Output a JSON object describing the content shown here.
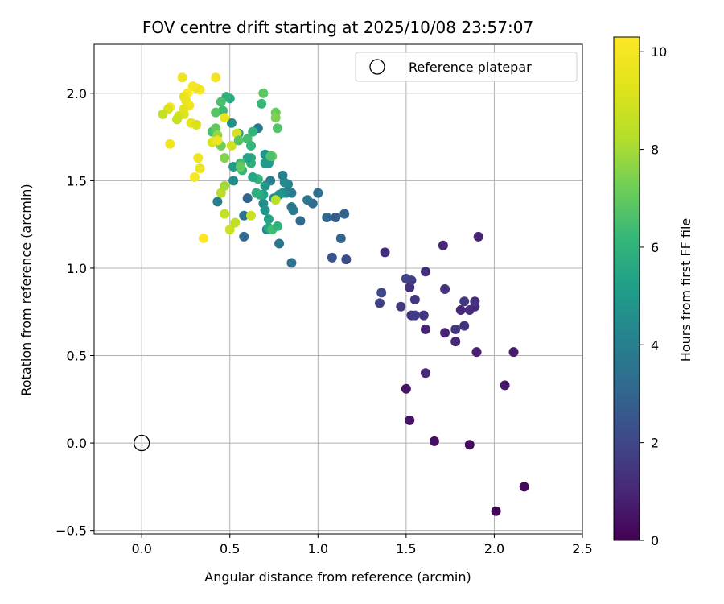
{
  "chart_data": {
    "type": "scatter",
    "title": "FOV centre drift starting at 2025/10/08 23:57:07",
    "xlabel": "Angular distance from reference (arcmin)",
    "ylabel": "Rotation from reference (arcmin)",
    "xlim": [
      -0.27,
      2.5
    ],
    "ylim": [
      -0.52,
      2.28
    ],
    "xticks": [
      0.0,
      0.5,
      1.0,
      1.5,
      2.0,
      2.5
    ],
    "xtick_labels": [
      "0.0",
      "0.5",
      "1.0",
      "1.5",
      "2.0",
      "2.5"
    ],
    "yticks": [
      -0.5,
      0.0,
      0.5,
      1.0,
      1.5,
      2.0
    ],
    "ytick_labels": [
      "−0.5",
      "0.0",
      "0.5",
      "1.0",
      "1.5",
      "2.0"
    ],
    "grid": true,
    "legend": {
      "position": "top-right",
      "entries": [
        "Reference platepar"
      ]
    },
    "reference": {
      "x": 0.0,
      "y": 0.0,
      "label": "Reference platepar"
    },
    "colorbar": {
      "label": "Hours from first FF file",
      "range": [
        0,
        10.3
      ],
      "ticks": [
        0,
        2,
        4,
        6,
        8,
        10
      ],
      "tick_labels": [
        "0",
        "2",
        "4",
        "6",
        "8",
        "10"
      ],
      "colormap": "viridis"
    },
    "points": [
      {
        "x": 2.01,
        "y": -0.39,
        "h": 0.1
      },
      {
        "x": 2.17,
        "y": -0.25,
        "h": 0.2
      },
      {
        "x": 1.86,
        "y": -0.01,
        "h": 0.3
      },
      {
        "x": 1.66,
        "y": 0.01,
        "h": 0.4
      },
      {
        "x": 1.52,
        "y": 0.13,
        "h": 0.5
      },
      {
        "x": 1.5,
        "y": 0.31,
        "h": 0.5
      },
      {
        "x": 2.06,
        "y": 0.33,
        "h": 0.6
      },
      {
        "x": 2.11,
        "y": 0.52,
        "h": 0.7
      },
      {
        "x": 1.9,
        "y": 0.52,
        "h": 0.8
      },
      {
        "x": 1.61,
        "y": 0.4,
        "h": 1.0
      },
      {
        "x": 1.61,
        "y": 0.65,
        "h": 0.9
      },
      {
        "x": 1.72,
        "y": 0.63,
        "h": 0.9
      },
      {
        "x": 1.78,
        "y": 0.58,
        "h": 1.0
      },
      {
        "x": 1.78,
        "y": 0.65,
        "h": 1.5
      },
      {
        "x": 1.83,
        "y": 0.67,
        "h": 1.4
      },
      {
        "x": 1.81,
        "y": 0.76,
        "h": 1.0
      },
      {
        "x": 1.86,
        "y": 0.76,
        "h": 1.2
      },
      {
        "x": 1.89,
        "y": 0.78,
        "h": 1.1
      },
      {
        "x": 1.89,
        "y": 0.81,
        "h": 1.3
      },
      {
        "x": 1.83,
        "y": 0.81,
        "h": 1.6
      },
      {
        "x": 1.91,
        "y": 1.18,
        "h": 0.9
      },
      {
        "x": 1.71,
        "y": 1.13,
        "h": 1.0
      },
      {
        "x": 1.72,
        "y": 0.88,
        "h": 1.3
      },
      {
        "x": 1.61,
        "y": 0.98,
        "h": 1.2
      },
      {
        "x": 1.6,
        "y": 0.73,
        "h": 1.5
      },
      {
        "x": 1.53,
        "y": 0.73,
        "h": 1.4
      },
      {
        "x": 1.55,
        "y": 0.73,
        "h": 1.7
      },
      {
        "x": 1.55,
        "y": 0.82,
        "h": 1.5
      },
      {
        "x": 1.47,
        "y": 0.78,
        "h": 1.6
      },
      {
        "x": 1.52,
        "y": 0.89,
        "h": 1.3
      },
      {
        "x": 1.53,
        "y": 0.93,
        "h": 1.7
      },
      {
        "x": 1.5,
        "y": 0.94,
        "h": 1.9
      },
      {
        "x": 1.38,
        "y": 1.09,
        "h": 1.2
      },
      {
        "x": 1.35,
        "y": 0.8,
        "h": 1.8
      },
      {
        "x": 1.36,
        "y": 0.86,
        "h": 2.0
      },
      {
        "x": 1.16,
        "y": 1.05,
        "h": 2.2
      },
      {
        "x": 1.08,
        "y": 1.06,
        "h": 2.5
      },
      {
        "x": 1.13,
        "y": 1.17,
        "h": 3.0
      },
      {
        "x": 1.1,
        "y": 1.29,
        "h": 2.7
      },
      {
        "x": 1.15,
        "y": 1.31,
        "h": 2.9
      },
      {
        "x": 1.05,
        "y": 1.29,
        "h": 3.1
      },
      {
        "x": 1.0,
        "y": 1.43,
        "h": 3.4
      },
      {
        "x": 0.97,
        "y": 1.37,
        "h": 3.3
      },
      {
        "x": 0.94,
        "y": 1.39,
        "h": 3.6
      },
      {
        "x": 0.9,
        "y": 1.27,
        "h": 3.2
      },
      {
        "x": 0.85,
        "y": 1.03,
        "h": 3.5
      },
      {
        "x": 0.86,
        "y": 1.33,
        "h": 3.9
      },
      {
        "x": 0.85,
        "y": 1.35,
        "h": 3.7
      },
      {
        "x": 0.85,
        "y": 1.43,
        "h": 3.8
      },
      {
        "x": 0.82,
        "y": 1.43,
        "h": 4.1
      },
      {
        "x": 0.83,
        "y": 1.48,
        "h": 4.2
      },
      {
        "x": 0.81,
        "y": 1.49,
        "h": 4.4
      },
      {
        "x": 0.8,
        "y": 1.43,
        "h": 4.6
      },
      {
        "x": 0.8,
        "y": 1.53,
        "h": 4.0
      },
      {
        "x": 0.78,
        "y": 1.14,
        "h": 3.6
      },
      {
        "x": 0.78,
        "y": 1.42,
        "h": 4.8
      },
      {
        "x": 0.75,
        "y": 1.4,
        "h": 4.5
      },
      {
        "x": 0.73,
        "y": 1.5,
        "h": 3.9
      },
      {
        "x": 0.73,
        "y": 1.63,
        "h": 4.3
      },
      {
        "x": 0.72,
        "y": 1.6,
        "h": 5.1
      },
      {
        "x": 0.7,
        "y": 1.65,
        "h": 4.7
      },
      {
        "x": 0.7,
        "y": 1.6,
        "h": 5.0
      },
      {
        "x": 0.7,
        "y": 1.47,
        "h": 4.9
      },
      {
        "x": 0.69,
        "y": 1.37,
        "h": 4.6
      },
      {
        "x": 0.7,
        "y": 1.33,
        "h": 4.8
      },
      {
        "x": 0.71,
        "y": 1.22,
        "h": 4.2
      },
      {
        "x": 0.72,
        "y": 1.28,
        "h": 5.4
      },
      {
        "x": 0.72,
        "y": 1.23,
        "h": 5.5
      },
      {
        "x": 0.69,
        "y": 1.42,
        "h": 5.3
      },
      {
        "x": 0.67,
        "y": 1.42,
        "h": 5.6
      },
      {
        "x": 0.65,
        "y": 1.43,
        "h": 5.8
      },
      {
        "x": 0.66,
        "y": 1.51,
        "h": 6.0
      },
      {
        "x": 0.66,
        "y": 1.8,
        "h": 3.8
      },
      {
        "x": 0.63,
        "y": 1.52,
        "h": 5.5
      },
      {
        "x": 0.62,
        "y": 1.63,
        "h": 5.7
      },
      {
        "x": 0.62,
        "y": 1.6,
        "h": 5.9
      },
      {
        "x": 0.6,
        "y": 1.63,
        "h": 5.4
      },
      {
        "x": 0.6,
        "y": 1.4,
        "h": 3.0
      },
      {
        "x": 0.58,
        "y": 1.3,
        "h": 3.5
      },
      {
        "x": 0.58,
        "y": 1.18,
        "h": 3.2
      },
      {
        "x": 0.57,
        "y": 1.56,
        "h": 6.2
      },
      {
        "x": 0.56,
        "y": 1.6,
        "h": 6.4
      },
      {
        "x": 0.55,
        "y": 1.77,
        "h": 5.2
      },
      {
        "x": 0.52,
        "y": 1.58,
        "h": 5.0
      },
      {
        "x": 0.52,
        "y": 1.5,
        "h": 4.5
      },
      {
        "x": 0.51,
        "y": 1.83,
        "h": 4.6
      },
      {
        "x": 0.5,
        "y": 1.97,
        "h": 5.6
      },
      {
        "x": 0.48,
        "y": 1.98,
        "h": 5.9
      },
      {
        "x": 0.46,
        "y": 1.9,
        "h": 6.3
      },
      {
        "x": 0.45,
        "y": 1.95,
        "h": 6.6
      },
      {
        "x": 0.42,
        "y": 1.89,
        "h": 6.8
      },
      {
        "x": 0.4,
        "y": 1.78,
        "h": 6.5
      },
      {
        "x": 0.42,
        "y": 1.8,
        "h": 7.0
      },
      {
        "x": 0.43,
        "y": 1.76,
        "h": 7.8
      },
      {
        "x": 0.45,
        "y": 1.7,
        "h": 7.2
      },
      {
        "x": 0.47,
        "y": 1.63,
        "h": 7.5
      },
      {
        "x": 0.43,
        "y": 1.38,
        "h": 4.0
      },
      {
        "x": 0.45,
        "y": 1.43,
        "h": 8.3
      },
      {
        "x": 0.47,
        "y": 1.47,
        "h": 8.0
      },
      {
        "x": 0.47,
        "y": 1.31,
        "h": 8.6
      },
      {
        "x": 0.5,
        "y": 1.22,
        "h": 8.8
      },
      {
        "x": 0.53,
        "y": 1.26,
        "h": 8.5
      },
      {
        "x": 0.51,
        "y": 1.7,
        "h": 8.9
      },
      {
        "x": 0.54,
        "y": 1.77,
        "h": 9.0
      },
      {
        "x": 0.55,
        "y": 1.73,
        "h": 6.8
      },
      {
        "x": 0.6,
        "y": 1.74,
        "h": 6.5
      },
      {
        "x": 0.62,
        "y": 1.7,
        "h": 6.1
      },
      {
        "x": 0.63,
        "y": 1.78,
        "h": 6.0
      },
      {
        "x": 0.68,
        "y": 1.94,
        "h": 6.2
      },
      {
        "x": 0.69,
        "y": 2.0,
        "h": 6.9
      },
      {
        "x": 0.76,
        "y": 1.89,
        "h": 7.1
      },
      {
        "x": 0.76,
        "y": 1.86,
        "h": 7.4
      },
      {
        "x": 0.77,
        "y": 1.8,
        "h": 6.7
      },
      {
        "x": 0.74,
        "y": 1.64,
        "h": 7.2
      },
      {
        "x": 0.73,
        "y": 1.64,
        "h": 6.6
      },
      {
        "x": 0.74,
        "y": 1.22,
        "h": 6.4
      },
      {
        "x": 0.77,
        "y": 1.24,
        "h": 6.0
      },
      {
        "x": 0.76,
        "y": 1.39,
        "h": 8.4
      },
      {
        "x": 0.62,
        "y": 1.3,
        "h": 8.8
      },
      {
        "x": 0.56,
        "y": 1.58,
        "h": 7.0
      },
      {
        "x": 0.4,
        "y": 1.72,
        "h": 9.2
      },
      {
        "x": 0.43,
        "y": 1.73,
        "h": 9.8
      },
      {
        "x": 0.47,
        "y": 1.86,
        "h": 9.6
      },
      {
        "x": 0.42,
        "y": 2.09,
        "h": 9.9
      },
      {
        "x": 0.33,
        "y": 2.02,
        "h": 10.1
      },
      {
        "x": 0.31,
        "y": 2.03,
        "h": 9.7
      },
      {
        "x": 0.29,
        "y": 2.04,
        "h": 10.0
      },
      {
        "x": 0.26,
        "y": 2.0,
        "h": 10.2
      },
      {
        "x": 0.23,
        "y": 2.09,
        "h": 9.8
      },
      {
        "x": 0.24,
        "y": 1.98,
        "h": 9.5
      },
      {
        "x": 0.25,
        "y": 1.96,
        "h": 9.6
      },
      {
        "x": 0.27,
        "y": 1.93,
        "h": 9.9
      },
      {
        "x": 0.24,
        "y": 1.91,
        "h": 9.4
      },
      {
        "x": 0.24,
        "y": 1.88,
        "h": 9.3
      },
      {
        "x": 0.21,
        "y": 1.87,
        "h": 9.0
      },
      {
        "x": 0.2,
        "y": 1.85,
        "h": 8.7
      },
      {
        "x": 0.16,
        "y": 1.92,
        "h": 10.1
      },
      {
        "x": 0.15,
        "y": 1.91,
        "h": 9.2
      },
      {
        "x": 0.12,
        "y": 1.88,
        "h": 8.6
      },
      {
        "x": 0.16,
        "y": 1.71,
        "h": 9.9
      },
      {
        "x": 0.28,
        "y": 1.83,
        "h": 9.5
      },
      {
        "x": 0.31,
        "y": 1.82,
        "h": 10.0
      },
      {
        "x": 0.31,
        "y": 1.82,
        "h": 9.1
      },
      {
        "x": 0.32,
        "y": 1.63,
        "h": 9.8
      },
      {
        "x": 0.33,
        "y": 1.57,
        "h": 9.7
      },
      {
        "x": 0.3,
        "y": 1.52,
        "h": 10.1
      },
      {
        "x": 0.35,
        "y": 1.17,
        "h": 10.3
      }
    ]
  }
}
